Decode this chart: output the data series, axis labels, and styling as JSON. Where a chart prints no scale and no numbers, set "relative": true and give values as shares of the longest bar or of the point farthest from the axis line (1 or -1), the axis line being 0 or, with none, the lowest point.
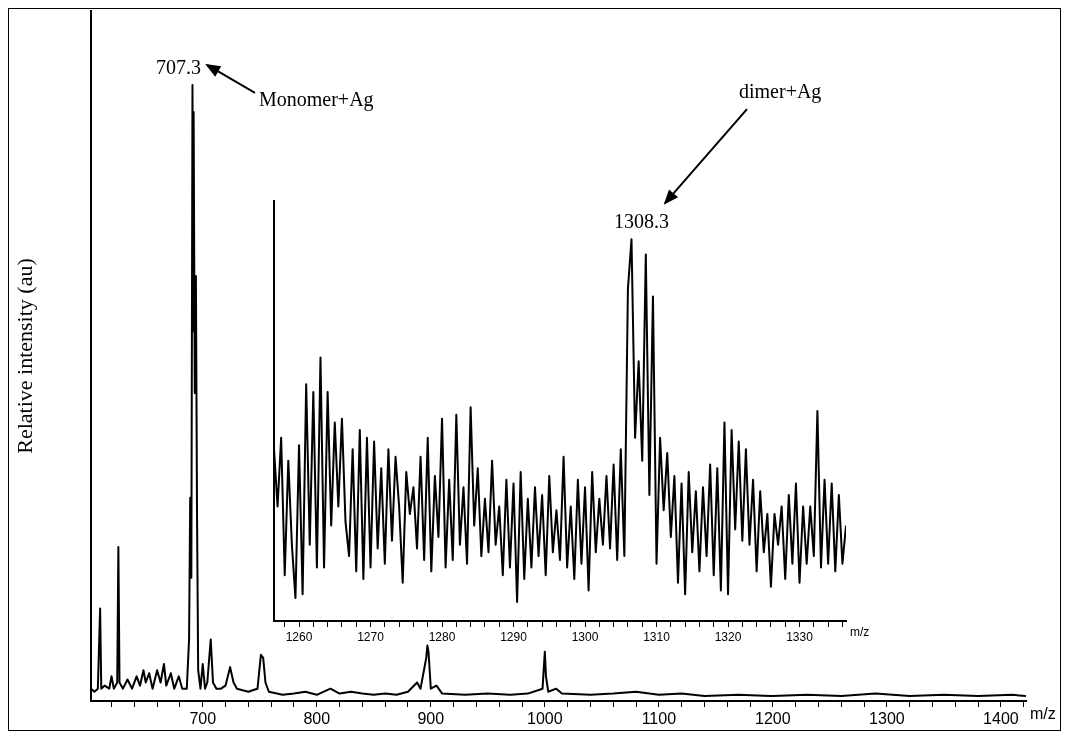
{
  "chart_data": [
    {
      "type": "line",
      "ylabel": "Relative intensity (au)",
      "xlabel": "m/z",
      "relative": true,
      "color": "#000000",
      "xlim": [
        602,
        1422
      ],
      "xticks": [
        {
          "value": 620,
          "label": null
        },
        {
          "value": 640,
          "label": null
        },
        {
          "value": 660,
          "label": null
        },
        {
          "value": 680,
          "label": null
        },
        700,
        {
          "value": 720,
          "label": null
        },
        {
          "value": 740,
          "label": null
        },
        {
          "value": 760,
          "label": null
        },
        {
          "value": 780,
          "label": null
        },
        800,
        {
          "value": 820,
          "label": null
        },
        {
          "value": 840,
          "label": null
        },
        {
          "value": 860,
          "label": null
        },
        {
          "value": 880,
          "label": null
        },
        900,
        {
          "value": 920,
          "label": null
        },
        {
          "value": 940,
          "label": null
        },
        {
          "value": 960,
          "label": null
        },
        {
          "value": 980,
          "label": null
        },
        1000,
        {
          "value": 1020,
          "label": null
        },
        {
          "value": 1040,
          "label": null
        },
        {
          "value": 1060,
          "label": null
        },
        {
          "value": 1080,
          "label": null
        },
        1100,
        {
          "value": 1120,
          "label": null
        },
        {
          "value": 1140,
          "label": null
        },
        {
          "value": 1160,
          "label": null
        },
        {
          "value": 1180,
          "label": null
        },
        1200,
        {
          "value": 1220,
          "label": null
        },
        {
          "value": 1240,
          "label": null
        },
        {
          "value": 1260,
          "label": null
        },
        {
          "value": 1280,
          "label": null
        },
        1300,
        {
          "value": 1320,
          "label": null
        },
        {
          "value": 1340,
          "label": null
        },
        {
          "value": 1360,
          "label": null
        },
        {
          "value": 1380,
          "label": null
        },
        1400,
        {
          "value": 1420,
          "label": null
        }
      ],
      "x": [
        602,
        605,
        608,
        610,
        611,
        614,
        618,
        620,
        622,
        625,
        626,
        627,
        630,
        634,
        638,
        642,
        645,
        648,
        650,
        653,
        656,
        660,
        663,
        666,
        668,
        672,
        675,
        679,
        682,
        686,
        688,
        689,
        690,
        691,
        691.5,
        692,
        693,
        694,
        695,
        696,
        698,
        700,
        702,
        704,
        707,
        709,
        712,
        716,
        720,
        724,
        727,
        730,
        740,
        748,
        751,
        753,
        755,
        758,
        770,
        780,
        790,
        800,
        812,
        820,
        830,
        840,
        850,
        860,
        870,
        880,
        888,
        891,
        894,
        896,
        897,
        898,
        900,
        905,
        910,
        930,
        950,
        970,
        985,
        998,
        1000,
        1001,
        1003,
        1010,
        1015,
        1040,
        1060,
        1080,
        1100,
        1120,
        1140,
        1170,
        1200,
        1230,
        1260,
        1290,
        1320,
        1350,
        1380,
        1410,
        1422
      ],
      "values": [
        0.02,
        0.015,
        0.02,
        0.15,
        0.02,
        0.025,
        0.02,
        0.04,
        0.02,
        0.03,
        0.25,
        0.03,
        0.02,
        0.035,
        0.02,
        0.04,
        0.025,
        0.05,
        0.03,
        0.045,
        0.02,
        0.05,
        0.03,
        0.06,
        0.025,
        0.045,
        0.02,
        0.04,
        0.02,
        0.02,
        0.1,
        0.33,
        0.2,
        1.0,
        0.6,
        0.956,
        0.5,
        0.69,
        0.3,
        0.05,
        0.02,
        0.06,
        0.02,
        0.03,
        0.1,
        0.03,
        0.02,
        0.02,
        0.025,
        0.055,
        0.03,
        0.02,
        0.015,
        0.02,
        0.075,
        0.07,
        0.03,
        0.015,
        0.01,
        0.012,
        0.015,
        0.01,
        0.02,
        0.012,
        0.015,
        0.012,
        0.01,
        0.012,
        0.01,
        0.015,
        0.03,
        0.02,
        0.05,
        0.07,
        0.09,
        0.08,
        0.02,
        0.025,
        0.012,
        0.01,
        0.012,
        0.01,
        0.012,
        0.02,
        0.08,
        0.04,
        0.015,
        0.02,
        0.012,
        0.01,
        0.012,
        0.015,
        0.01,
        0.012,
        0.008,
        0.01,
        0.008,
        0.01,
        0.008,
        0.012,
        0.008,
        0.01,
        0.008,
        0.01,
        0.008
      ],
      "annotations": [
        {
          "text": "707.3",
          "x": 691,
          "y": 1
        },
        "Monomer+Ag"
      ]
    },
    {
      "type": "line",
      "xlabel": "m/z",
      "relative": true,
      "color": "#000000",
      "xlim": [
        1256.5,
        1336.5
      ],
      "xticks": [
        {
          "value": 1258,
          "label": null
        },
        1260,
        {
          "value": 1262,
          "label": null
        },
        {
          "value": 1264,
          "label": null
        },
        {
          "value": 1266,
          "label": null
        },
        {
          "value": 1268,
          "label": null
        },
        1270,
        {
          "value": 1272,
          "label": null
        },
        {
          "value": 1274,
          "label": null
        },
        {
          "value": 1276,
          "label": null
        },
        {
          "value": 1278,
          "label": null
        },
        1280,
        {
          "value": 1282,
          "label": null
        },
        {
          "value": 1284,
          "label": null
        },
        {
          "value": 1286,
          "label": null
        },
        {
          "value": 1288,
          "label": null
        },
        1290,
        {
          "value": 1292,
          "label": null
        },
        {
          "value": 1294,
          "label": null
        },
        {
          "value": 1296,
          "label": null
        },
        {
          "value": 1298,
          "label": null
        },
        1300,
        {
          "value": 1302,
          "label": null
        },
        {
          "value": 1304,
          "label": null
        },
        {
          "value": 1306,
          "label": null
        },
        {
          "value": 1308,
          "label": null
        },
        1310,
        {
          "value": 1312,
          "label": null
        },
        {
          "value": 1314,
          "label": null
        },
        {
          "value": 1316,
          "label": null
        },
        {
          "value": 1318,
          "label": null
        },
        1320,
        {
          "value": 1322,
          "label": null
        },
        {
          "value": 1324,
          "label": null
        },
        {
          "value": 1326,
          "label": null
        },
        {
          "value": 1328,
          "label": null
        },
        1330,
        {
          "value": 1332,
          "label": null
        },
        {
          "value": 1334,
          "label": null
        },
        {
          "value": 1336,
          "label": null
        }
      ],
      "x": [
        1256.5,
        1257,
        1257.5,
        1258,
        1258.5,
        1259,
        1259.5,
        1260,
        1260.5,
        1261,
        1261.5,
        1262,
        1262.5,
        1263,
        1263.5,
        1264,
        1264.5,
        1265,
        1265.5,
        1266,
        1266.5,
        1267,
        1267.5,
        1268,
        1268.5,
        1269,
        1269.5,
        1270,
        1270.5,
        1271,
        1271.5,
        1272,
        1272.5,
        1273,
        1273.5,
        1274,
        1274.5,
        1275,
        1275.5,
        1276,
        1276.5,
        1277,
        1277.5,
        1278,
        1278.5,
        1279,
        1279.5,
        1280,
        1280.5,
        1281,
        1281.5,
        1282,
        1282.5,
        1283,
        1283.5,
        1284,
        1284.5,
        1285,
        1285.5,
        1286,
        1286.5,
        1287,
        1287.5,
        1288,
        1288.5,
        1289,
        1289.5,
        1290,
        1290.5,
        1291,
        1291.5,
        1292,
        1292.5,
        1293,
        1293.5,
        1294,
        1294.5,
        1295,
        1295.5,
        1296,
        1296.5,
        1297,
        1297.5,
        1298,
        1298.5,
        1299,
        1299.5,
        1300,
        1300.5,
        1301,
        1301.5,
        1302,
        1302.5,
        1303,
        1303.5,
        1304,
        1304.5,
        1305,
        1305.5,
        1306,
        1306.5,
        1307,
        1307.5,
        1308,
        1308.5,
        1309,
        1309.5,
        1310,
        1310.5,
        1311,
        1311.5,
        1312,
        1312.5,
        1313,
        1313.5,
        1314,
        1314.5,
        1315,
        1315.5,
        1316,
        1316.5,
        1317,
        1317.5,
        1318,
        1318.5,
        1319,
        1319.5,
        1320,
        1320.5,
        1321,
        1321.5,
        1322,
        1322.5,
        1323,
        1323.5,
        1324,
        1324.5,
        1325,
        1325.5,
        1326,
        1326.5,
        1327,
        1327.5,
        1328,
        1328.5,
        1329,
        1329.5,
        1330,
        1330.5,
        1331,
        1331.5,
        1332,
        1332.5,
        1333,
        1333.5,
        1334,
        1334.5,
        1335,
        1335.5,
        1336,
        1336.5
      ],
      "values": [
        0.45,
        0.3,
        0.48,
        0.12,
        0.42,
        0.2,
        0.06,
        0.46,
        0.07,
        0.62,
        0.2,
        0.6,
        0.14,
        0.69,
        0.14,
        0.6,
        0.25,
        0.52,
        0.3,
        0.53,
        0.26,
        0.17,
        0.45,
        0.13,
        0.5,
        0.11,
        0.48,
        0.14,
        0.47,
        0.19,
        0.4,
        0.15,
        0.45,
        0.21,
        0.43,
        0.3,
        0.1,
        0.39,
        0.28,
        0.35,
        0.19,
        0.43,
        0.16,
        0.48,
        0.13,
        0.38,
        0.22,
        0.53,
        0.14,
        0.37,
        0.16,
        0.54,
        0.2,
        0.35,
        0.15,
        0.56,
        0.25,
        0.4,
        0.17,
        0.32,
        0.18,
        0.42,
        0.2,
        0.3,
        0.12,
        0.37,
        0.14,
        0.36,
        0.05,
        0.39,
        0.11,
        0.32,
        0.14,
        0.35,
        0.17,
        0.33,
        0.12,
        0.38,
        0.18,
        0.29,
        0.16,
        0.43,
        0.14,
        0.3,
        0.11,
        0.37,
        0.15,
        0.35,
        0.08,
        0.39,
        0.18,
        0.32,
        0.2,
        0.38,
        0.19,
        0.41,
        0.16,
        0.45,
        0.17,
        0.87,
        1.0,
        0.48,
        0.68,
        0.42,
        0.96,
        0.33,
        0.85,
        0.15,
        0.48,
        0.29,
        0.44,
        0.22,
        0.38,
        0.1,
        0.36,
        0.07,
        0.39,
        0.18,
        0.34,
        0.13,
        0.35,
        0.17,
        0.41,
        0.12,
        0.4,
        0.08,
        0.52,
        0.07,
        0.5,
        0.24,
        0.47,
        0.21,
        0.45,
        0.2,
        0.37,
        0.13,
        0.34,
        0.18,
        0.28,
        0.09,
        0.28,
        0.2,
        0.3,
        0.11,
        0.33,
        0.15,
        0.36,
        0.1,
        0.3,
        0.15,
        0.3,
        0.17,
        0.55,
        0.14,
        0.37,
        0.15,
        0.36,
        0.13,
        0.33,
        0.15,
        0.25
      ],
      "annotations": [
        {
          "text": "1308.3",
          "x": 1306.5,
          "y": 1
        },
        "dimer+Ag"
      ]
    }
  ]
}
